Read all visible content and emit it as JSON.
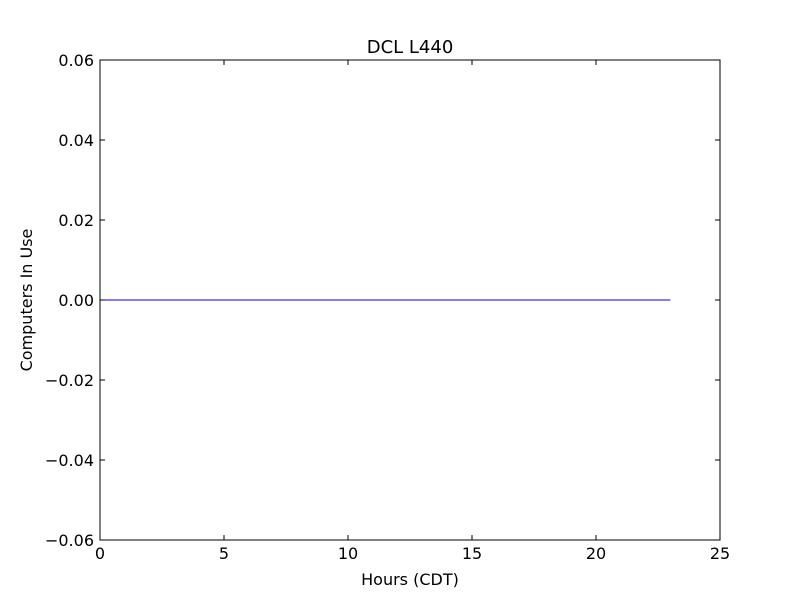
{
  "chart_data": {
    "type": "line",
    "title": "DCL L440",
    "xlabel": "Hours (CDT)",
    "ylabel": "Computers In Use",
    "xlim": [
      0,
      25
    ],
    "ylim": [
      -0.06,
      0.06
    ],
    "x_ticks": [
      0,
      5,
      10,
      15,
      20,
      25
    ],
    "x_tick_labels": [
      "0",
      "5",
      "10",
      "15",
      "20",
      "25"
    ],
    "y_ticks": [
      -0.06,
      -0.04,
      -0.02,
      0.0,
      0.02,
      0.04,
      0.06
    ],
    "y_tick_labels": [
      "−0.06",
      "−0.04",
      "−0.02",
      "0.00",
      "0.02",
      "0.04",
      "0.06"
    ],
    "grid": false,
    "series": [
      {
        "color": "#0000ff",
        "x": [
          0,
          1,
          2,
          3,
          4,
          5,
          6,
          7,
          8,
          9,
          10,
          11,
          12,
          13,
          14,
          15,
          16,
          17,
          18,
          19,
          20,
          21,
          22,
          23
        ],
        "y": [
          0,
          0,
          0,
          0,
          0,
          0,
          0,
          0,
          0,
          0,
          0,
          0,
          0,
          0,
          0,
          0,
          0,
          0,
          0,
          0,
          0,
          0,
          0,
          0
        ]
      }
    ]
  }
}
